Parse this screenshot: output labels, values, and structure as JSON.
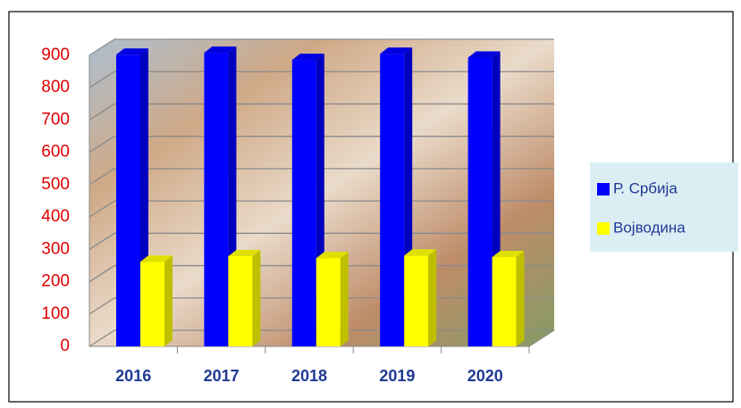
{
  "chart_data": {
    "type": "bar",
    "categories": [
      "2016",
      "2017",
      "2018",
      "2019",
      "2020"
    ],
    "series": [
      {
        "name": "Р. Србија",
        "color": "#0000ff",
        "values": [
          902,
          908,
          886,
          905,
          893
        ]
      },
      {
        "name": "Војводина",
        "color": "#ffff00",
        "values": [
          262,
          279,
          273,
          281,
          276
        ]
      }
    ],
    "ylim": [
      0,
      900
    ],
    "yticks": [
      0,
      100,
      200,
      300,
      400,
      500,
      600,
      700,
      800,
      900
    ],
    "grid": true,
    "legend": "right"
  }
}
